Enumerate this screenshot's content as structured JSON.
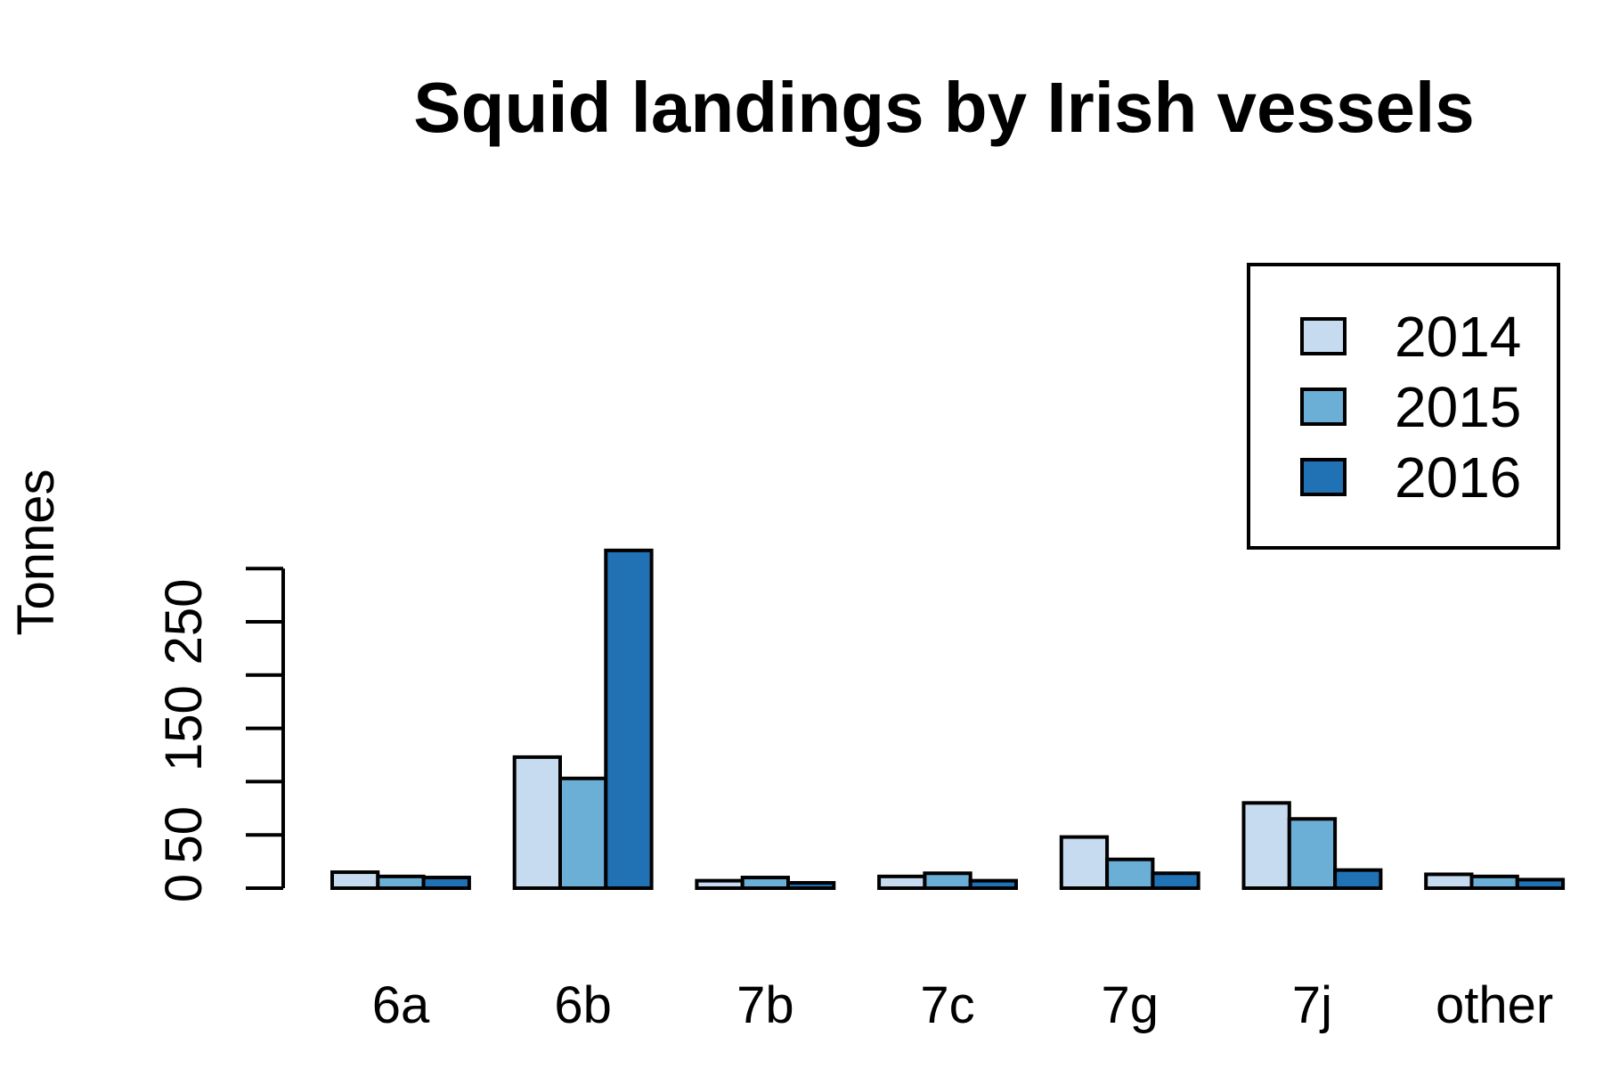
{
  "chart_data": {
    "type": "bar",
    "title": "Squid landings by Irish vessels",
    "ylabel": "Tonnes",
    "xlabel": "",
    "categories": [
      "6a",
      "6b",
      "7b",
      "7c",
      "7g",
      "7j",
      "other"
    ],
    "series": [
      {
        "name": "2014",
        "color": "#c6dbef",
        "values": [
          15,
          123,
          7,
          11,
          48,
          80,
          13
        ]
      },
      {
        "name": "2015",
        "color": "#6baed6",
        "values": [
          11,
          103,
          10,
          14,
          27,
          65,
          11
        ]
      },
      {
        "name": "2016",
        "color": "#2171b5",
        "values": [
          10,
          317,
          5,
          7,
          14,
          17,
          8
        ]
      }
    ],
    "yticks": [
      0,
      50,
      100,
      150,
      200,
      250,
      300
    ],
    "ytick_labels": [
      "0",
      "50",
      "",
      "150",
      "",
      "250",
      ""
    ],
    "ylim": [
      0,
      320
    ],
    "grid": false,
    "legend_position": "top-right"
  }
}
